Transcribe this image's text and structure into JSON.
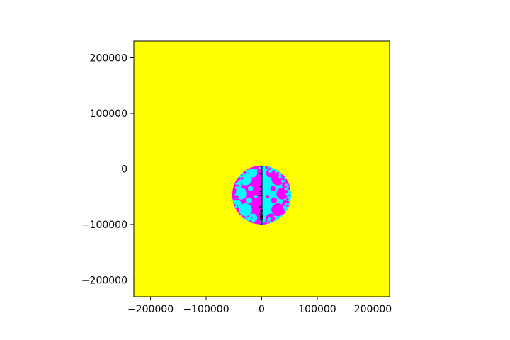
{
  "chart_data": {
    "type": "heatmap",
    "title": "",
    "xlabel": "",
    "ylabel": "",
    "xlim": [
      -230000,
      230000
    ],
    "ylim": [
      -230000,
      230000
    ],
    "xticks": [
      -200000,
      -100000,
      0,
      100000,
      200000
    ],
    "xtick_labels": [
      "−200000",
      "−100000",
      "0",
      "100000",
      "200000"
    ],
    "yticks": [
      -200000,
      -100000,
      0,
      100000,
      200000
    ],
    "ytick_labels": [
      "−200000",
      "−100000",
      "0",
      "100000",
      "200000"
    ],
    "grid": false,
    "legend": "none",
    "background_color": "#ffff00",
    "disc": {
      "center": [
        0,
        -47000
      ],
      "radius": 53000,
      "colors": [
        "#ff00ff",
        "#00ffff",
        "#000000"
      ]
    }
  }
}
